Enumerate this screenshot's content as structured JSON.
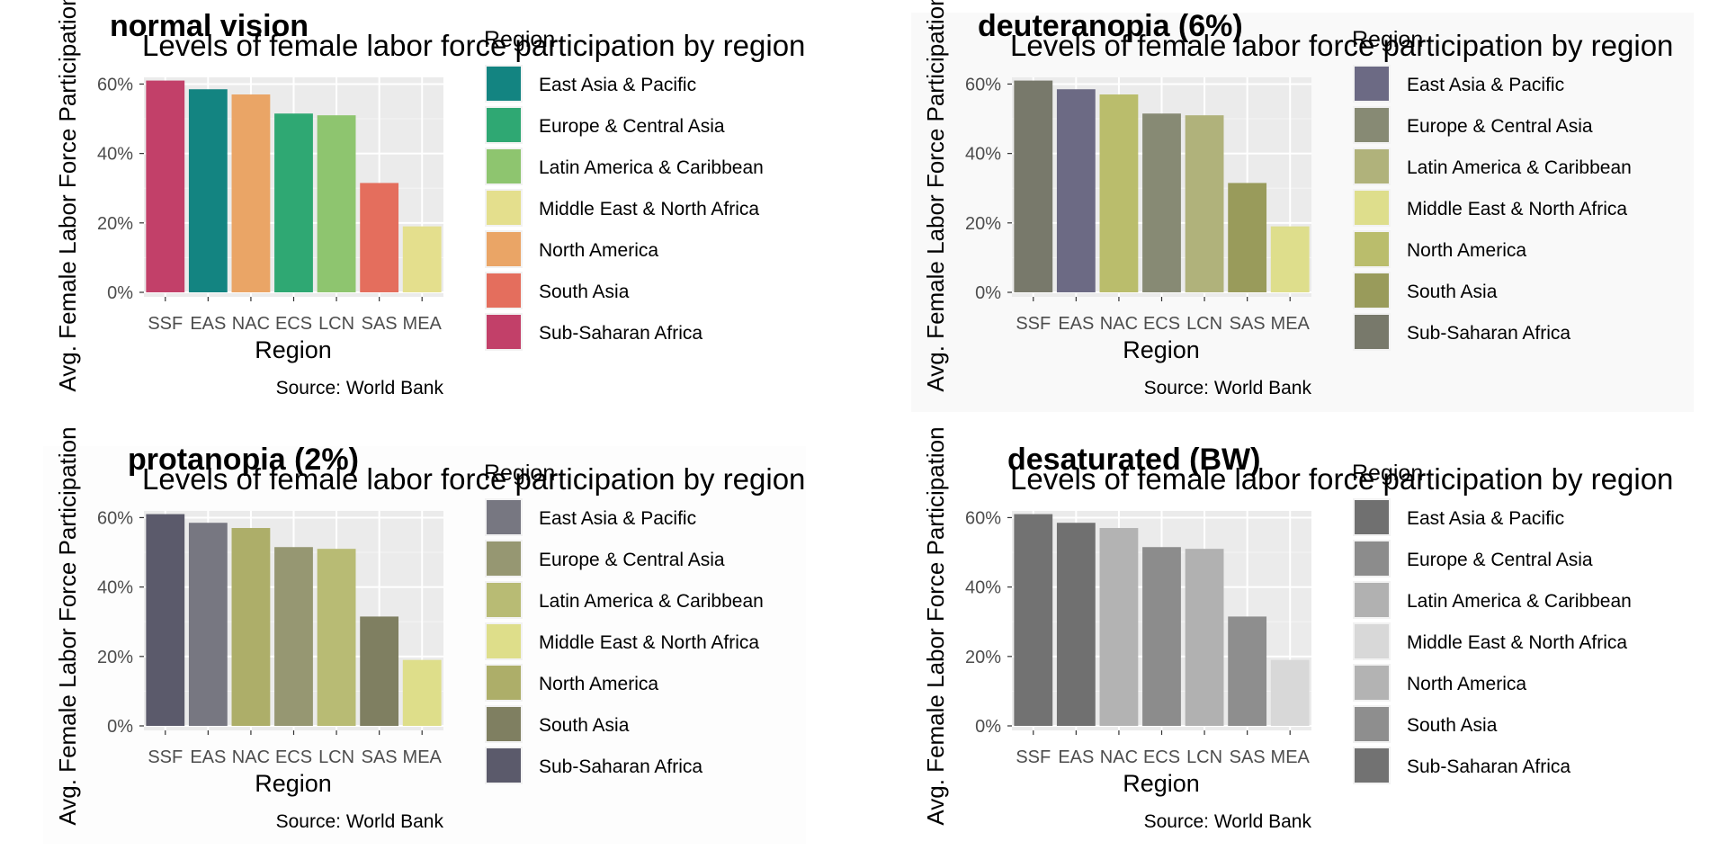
{
  "panels": [
    {
      "panel_title": "normal vision",
      "legend_colors": [
        "#138481",
        "#2fa873",
        "#8ec56f",
        "#e4df8d",
        "#eaa566",
        "#e46e5d",
        "#c24069"
      ]
    },
    {
      "panel_title": "deuteranopia (6%)",
      "legend_colors": [
        "#6c6a84",
        "#878a74",
        "#b0b27b",
        "#dede8c",
        "#babd6c",
        "#999b5b",
        "#78796b"
      ]
    },
    {
      "panel_title": "protanopia (2%)",
      "legend_colors": [
        "#777781",
        "#969772",
        "#b8bb74",
        "#dede8a",
        "#adae69",
        "#7f7f61",
        "#5b5a6b"
      ]
    },
    {
      "panel_title": "desaturated (BW)",
      "legend_colors": [
        "#707070",
        "#8c8c8c",
        "#b1b1b1",
        "#d8d8d8",
        "#b3b3b3",
        "#8e8e8e",
        "#727272"
      ]
    }
  ],
  "chart_data": [
    {
      "type": "bar",
      "title": "Levels of female labor force participation by region",
      "xlabel": "Region",
      "ylabel": "Avg. Female Labor Force Participation",
      "caption": "Source: World Bank",
      "categories": [
        "SSF",
        "EAS",
        "NAC",
        "ECS",
        "LCN",
        "SAS",
        "MEA"
      ],
      "values": [
        0.61,
        0.585,
        0.57,
        0.515,
        0.51,
        0.315,
        0.19
      ],
      "category_regions": [
        "Sub-Saharan Africa",
        "East Asia & Pacific",
        "North America",
        "Europe & Central Asia",
        "Latin America & Caribbean",
        "South Asia",
        "Middle East & North Africa"
      ],
      "ylim": [
        0,
        0.64
      ],
      "yticks": [
        0,
        0.2,
        0.4,
        0.6
      ],
      "ytick_labels": [
        "0%",
        "20%",
        "40%",
        "60%"
      ],
      "legend_title": "Region",
      "legend": [
        "East Asia & Pacific",
        "Europe & Central Asia",
        "Latin America & Caribbean",
        "Middle East & North Africa",
        "North America",
        "South Asia",
        "Sub-Saharan Africa"
      ],
      "legend_position": "right",
      "grid": true
    }
  ]
}
